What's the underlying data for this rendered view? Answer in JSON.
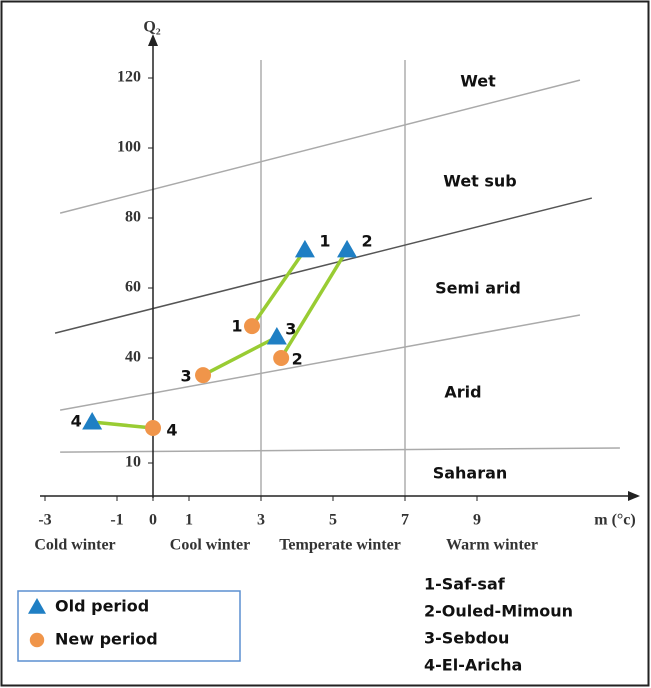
{
  "chart_data": {
    "type": "scatter",
    "y_label": "Q₂",
    "x_label": "m (°c)",
    "xlim": [
      -3.2,
      12.7
    ],
    "ylim": [
      0,
      132
    ],
    "xticks": [
      -3,
      -1,
      0,
      1,
      3,
      5,
      7,
      9
    ],
    "yticks": [
      10,
      40,
      60,
      80,
      100,
      120
    ],
    "winter_boundaries": [
      3,
      7
    ],
    "winter_labels": [
      "Cold winter",
      "Cool winter",
      "Temperate winter",
      "Warm winter"
    ],
    "zone_labels": [
      "Wet",
      "Wet sub",
      "Semi arid",
      "Arid",
      "Saharan"
    ],
    "boundaries": [
      {
        "x": [
          -2.58,
          11.86
        ],
        "y": [
          81.4,
          119.4
        ]
      },
      {
        "x": [
          -2.72,
          12.19
        ],
        "y": [
          47.1,
          85.7
        ]
      },
      {
        "x": [
          -2.58,
          11.86
        ],
        "y": [
          25.1,
          52.3
        ]
      },
      {
        "x": [
          -2.58,
          12.97
        ],
        "y": [
          13.1,
          14.3
        ]
      }
    ],
    "connector_color": "#99cc33",
    "series": [
      {
        "name": "Old period",
        "color": "#1f7fc4",
        "marker": "triangle",
        "x": [
          4.22,
          5.39,
          3.44,
          -1.69
        ],
        "values": [
          70.9,
          70.9,
          46,
          21.7
        ],
        "point_labels": [
          "1",
          "2",
          "3",
          "4"
        ]
      },
      {
        "name": "New period",
        "color": "#f0954a",
        "marker": "circle",
        "x": [
          2.75,
          3.56,
          1.39,
          0
        ],
        "values": [
          49.1,
          40,
          35.1,
          20
        ],
        "point_labels": [
          "1",
          "2",
          "3",
          "4"
        ]
      }
    ],
    "stations": [
      "1-Saf-saf",
      "2-Ouled-Mimoun",
      "3-Sebdou",
      "4-El-Aricha"
    ]
  }
}
